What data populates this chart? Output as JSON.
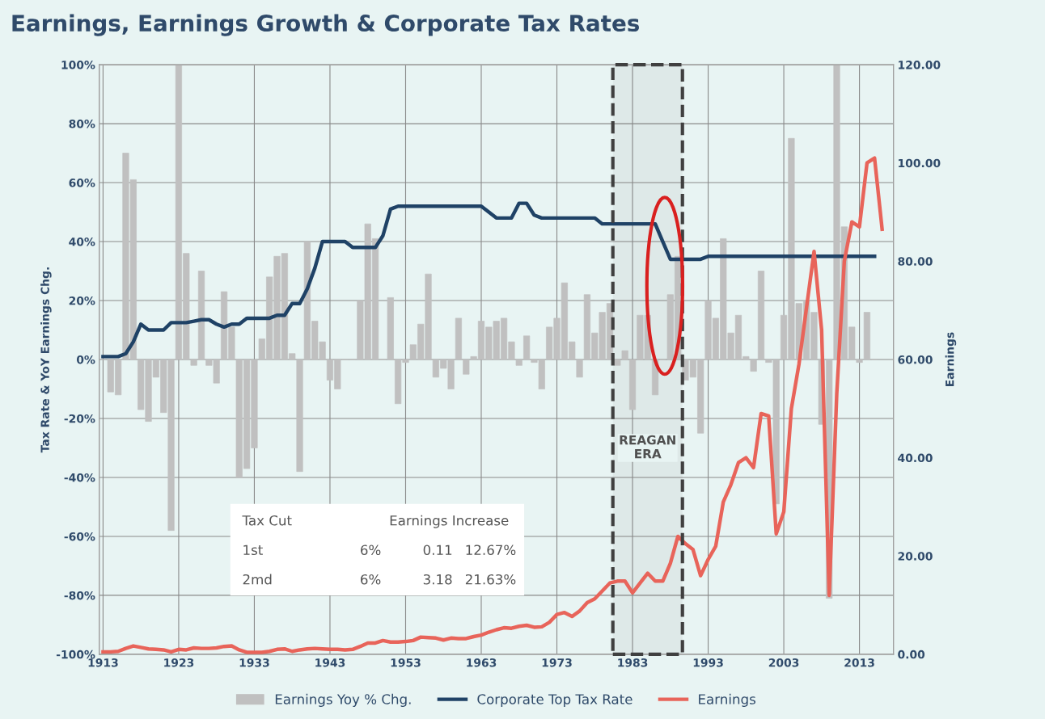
{
  "chart_data": {
    "type": "bar",
    "title": "Earnings, Earnings Growth & Corporate Tax Rates",
    "ylabel": "Tax Rate & YoY Earnings Chg.",
    "y2label": "Earnings",
    "x": [
      1913,
      1914,
      1915,
      1916,
      1917,
      1918,
      1919,
      1920,
      1921,
      1922,
      1923,
      1924,
      1925,
      1926,
      1927,
      1928,
      1929,
      1930,
      1931,
      1932,
      1933,
      1934,
      1935,
      1936,
      1937,
      1938,
      1939,
      1940,
      1941,
      1942,
      1943,
      1944,
      1945,
      1946,
      1947,
      1948,
      1949,
      1950,
      1951,
      1952,
      1953,
      1954,
      1955,
      1956,
      1957,
      1958,
      1959,
      1960,
      1961,
      1962,
      1963,
      1964,
      1965,
      1966,
      1967,
      1968,
      1969,
      1970,
      1971,
      1972,
      1973,
      1974,
      1975,
      1976,
      1977,
      1978,
      1979,
      1980,
      1981,
      1982,
      1983,
      1984,
      1985,
      1986,
      1987,
      1988,
      1989,
      1990,
      1991,
      1992,
      1993,
      1994,
      1995,
      1996,
      1997,
      1998,
      1999,
      2000,
      2001,
      2002,
      2003,
      2004,
      2005,
      2006,
      2007,
      2008,
      2009,
      2010,
      2011,
      2012,
      2013,
      2014,
      2015,
      2016
    ],
    "series": [
      {
        "name": "Earnings Yoy % Chg.",
        "color": "#c0c0c0",
        "values": [
          0,
          -11,
          -12,
          70,
          61,
          -17,
          -21,
          -6,
          -18,
          -58,
          100,
          36,
          -2,
          30,
          -2,
          -8,
          23,
          11,
          -40,
          -37,
          -30,
          7,
          28,
          35,
          36,
          2,
          -38,
          40,
          13,
          6,
          -7,
          -10,
          0,
          0,
          20,
          46,
          41,
          0,
          21,
          -15,
          -1,
          5,
          12,
          29,
          -6,
          -3,
          -10,
          14,
          -5,
          1,
          13,
          11,
          13,
          14,
          6,
          -2,
          8,
          -1,
          -10,
          11,
          14,
          26,
          6,
          -6,
          22,
          9,
          16,
          19,
          -2,
          3,
          -17,
          15,
          15,
          -12,
          0,
          22,
          35,
          -7,
          -6,
          -25,
          20,
          14,
          41,
          9,
          15,
          1,
          -4,
          30,
          -1,
          -49,
          15,
          75,
          19,
          20,
          16,
          -22,
          -81,
          100,
          45,
          11,
          -1,
          16,
          0,
          null
        ]
      },
      {
        "name": "Corporate Top Tax Rate",
        "type": "line",
        "color": "#1f4266",
        "values": [
          1,
          1,
          1,
          2,
          6,
          12,
          10,
          10,
          10,
          12.5,
          12.5,
          12.5,
          13,
          13.5,
          13.5,
          12,
          11,
          12,
          12,
          14,
          14,
          14,
          14,
          15,
          15,
          19,
          19,
          24,
          31,
          40,
          40,
          40,
          40,
          38,
          38,
          38,
          38,
          42,
          51,
          52,
          52,
          52,
          52,
          52,
          52,
          52,
          52,
          52,
          52,
          52,
          52,
          50,
          48,
          48,
          48,
          53,
          53,
          49,
          48,
          48,
          48,
          48,
          48,
          48,
          48,
          48,
          46,
          46,
          46,
          46,
          46,
          46,
          46,
          46,
          40,
          34,
          34,
          34,
          34,
          34,
          35,
          35,
          35,
          35,
          35,
          35,
          35,
          35,
          35,
          35,
          35,
          35,
          35,
          35,
          35,
          35,
          35,
          35,
          35,
          35,
          35,
          35,
          35,
          null
        ]
      },
      {
        "name": "Earnings",
        "type": "line",
        "axis": "y2",
        "color": "#e8645a",
        "values": [
          0.5,
          0.5,
          0.6,
          1.2,
          1.7,
          1.4,
          1.1,
          1.0,
          0.9,
          0.5,
          1.0,
          0.9,
          1.3,
          1.2,
          1.2,
          1.3,
          1.6,
          1.7,
          0.9,
          0.4,
          0.4,
          0.4,
          0.6,
          1.0,
          1.1,
          0.6,
          0.9,
          1.1,
          1.2,
          1.1,
          1.0,
          1.0,
          0.9,
          1.0,
          1.6,
          2.3,
          2.3,
          2.8,
          2.5,
          2.5,
          2.6,
          2.8,
          3.5,
          3.4,
          3.3,
          2.9,
          3.3,
          3.2,
          3.2,
          3.6,
          3.9,
          4.5,
          5.0,
          5.4,
          5.3,
          5.7,
          5.9,
          5.5,
          5.6,
          6.5,
          8.1,
          8.5,
          7.7,
          8.8,
          10.5,
          11.3,
          12.9,
          14.5,
          14.9,
          14.9,
          12.5,
          14.5,
          16.5,
          14.9,
          14.9,
          18.5,
          24,
          22.5,
          21.3,
          16,
          19.3,
          22,
          31,
          34.5,
          39,
          40,
          38,
          49,
          48.5,
          24.5,
          29,
          50,
          59,
          70.5,
          82,
          66,
          12,
          53,
          80,
          88,
          87,
          100,
          101,
          86.5
        ]
      }
    ],
    "xlim": [
      1912.5,
      2017.5
    ],
    "xticks": [
      1913,
      1923,
      1933,
      1943,
      1953,
      1963,
      1973,
      1983,
      1993,
      2003,
      2013
    ],
    "ylim": [
      -100,
      100
    ],
    "yticks": [
      {
        "value": -100,
        "label": "-100%"
      },
      {
        "value": -80,
        "label": "-80%"
      },
      {
        "value": -60,
        "label": "-60%"
      },
      {
        "value": -40,
        "label": "-40%"
      },
      {
        "value": -20,
        "label": "-20%"
      },
      {
        "value": 0,
        "label": "0%"
      },
      {
        "value": 20,
        "label": "20%"
      },
      {
        "value": 40,
        "label": "40%"
      },
      {
        "value": 60,
        "label": "60%"
      },
      {
        "value": 80,
        "label": "80%"
      },
      {
        "value": 100,
        "label": "100%"
      }
    ],
    "y2lim": [
      0,
      120
    ],
    "y2ticks": [
      {
        "value": 0,
        "label": "0.00"
      },
      {
        "value": 20,
        "label": "20.00"
      },
      {
        "value": 40,
        "label": "40.00"
      },
      {
        "value": 60,
        "label": "60.00"
      },
      {
        "value": 80,
        "label": "80.00"
      },
      {
        "value": 100,
        "label": "100.00"
      },
      {
        "value": 120,
        "label": "120.00"
      }
    ],
    "bands": [
      {
        "axis": "x",
        "from": 1980.4,
        "to": 1989.6,
        "label": "REAGAN\nERA",
        "color": "#404040"
      }
    ],
    "annotations": [
      "Tax Cut",
      "Earnings Increase",
      "1st",
      "6%",
      "0.11",
      "12.67%",
      "2md",
      "6%",
      "3.18",
      "21.63%"
    ],
    "grid": true,
    "legend": "bottom"
  }
}
